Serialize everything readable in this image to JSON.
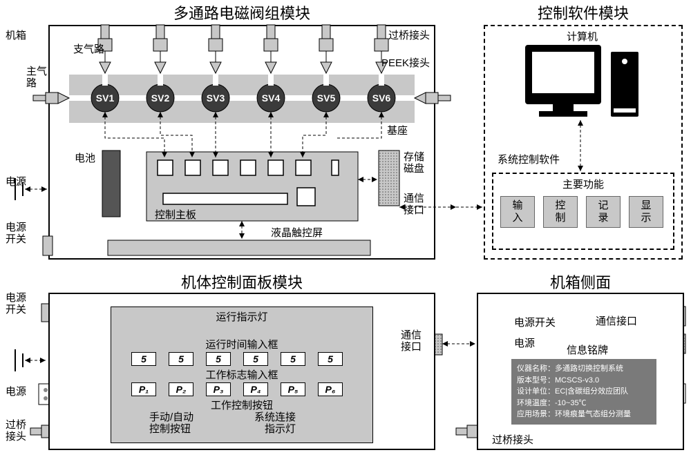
{
  "titles": {
    "valve_module": "多通路电磁阀组模块",
    "software_module": "控制软件模块",
    "panel_module": "机体控制面板模块",
    "chassis_side": "机箱侧面"
  },
  "labels": {
    "chassis": "机箱",
    "branch_air": "支气路",
    "main_air": "主气\n路",
    "bridge_conn": "过桥接头",
    "peek_conn": "PEEK接头",
    "base": "基座",
    "power": "电源",
    "power_switch": "电源\n开关",
    "power_switch_h": "电源开关",
    "battery": "电池",
    "control_board": "控制主板",
    "storage_disk": "存储\n磁盘",
    "comm_port": "通信\n接口",
    "comm_port_h": "通信接口",
    "lcd_touch": "液晶触控屏",
    "computer": "计算机",
    "sys_software": "系统控制软件",
    "main_func": "主要功能",
    "run_led": "运行指示灯",
    "runtime_input": "运行时间输入框",
    "workflag_input": "工作标志输入框",
    "work_ctrl_btn": "工作控制按钮",
    "manual_auto": "手动/自动\n控制按钮",
    "sys_link_led": "系统连接\n指示灯",
    "info_plate": "信息铭牌"
  },
  "valves": [
    "SV1",
    "SV2",
    "SV3",
    "SV4",
    "SV5",
    "SV6"
  ],
  "functions": [
    "输\n入",
    "控\n制",
    "记\n录",
    "显\n示"
  ],
  "runtime_values": [
    "5",
    "5",
    "5",
    "5",
    "5",
    "5"
  ],
  "workflags": [
    "P₁",
    "P₂",
    "P₃",
    "P₄",
    "P₅",
    "P₆"
  ],
  "nameplate": {
    "l1": "仪器名称：多通路切换控制系统",
    "l2": "版本型号：MCSCS-v3.0",
    "l3": "设计单位：EC|含碳组分效应团队",
    "l4": "环境温度：-10~35℃",
    "l5": "应用场景：环境痕量气态组分测量"
  },
  "colors": {
    "gray": "#c8c8c8",
    "dark": "#3b3b3b",
    "battery": "#555555",
    "computer": "#000000"
  }
}
